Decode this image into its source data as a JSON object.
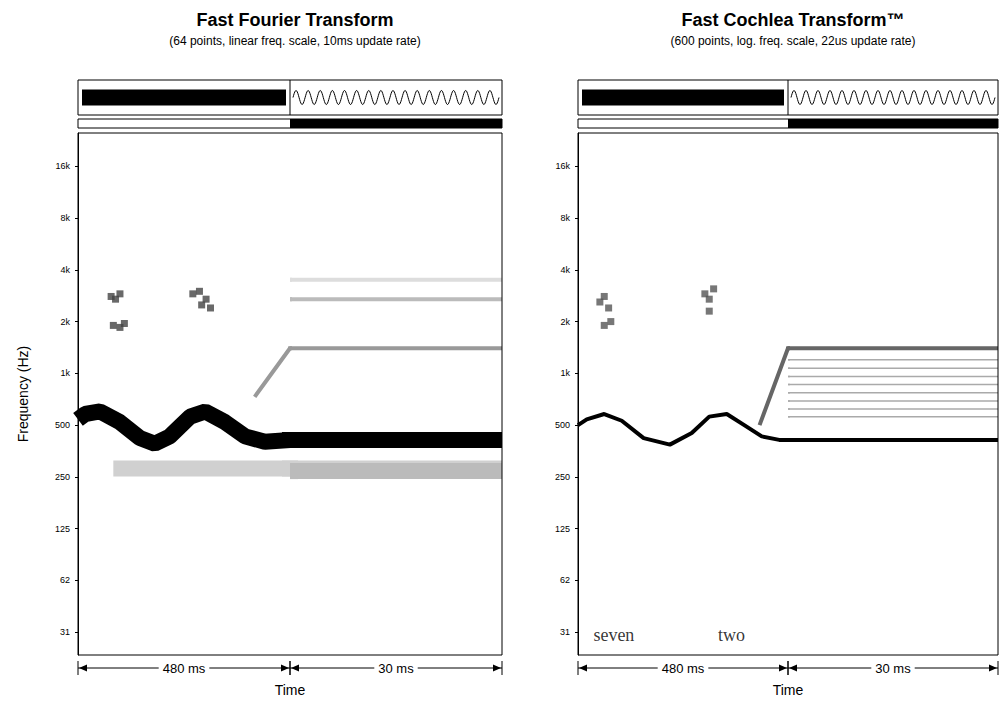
{
  "chart_data": [
    {
      "type": "line",
      "title": "Fast Fourier Transform",
      "subtitle": "(64 points, linear freq. scale, 10ms update rate)",
      "y_label": "Frequency (Hz)",
      "x_label": "Time",
      "log": "y",
      "grid": false,
      "tick_labels": "y",
      "ylim": [
        23,
        25000
      ],
      "yticks": [
        {
          "value": 31.25,
          "label": "31"
        },
        {
          "value": 62.5,
          "label": "62"
        },
        125,
        250,
        500,
        {
          "value": 1000,
          "label": "1k"
        },
        {
          "value": 2000,
          "label": "2k"
        },
        {
          "value": 4000,
          "label": "4k"
        },
        {
          "value": 8000,
          "label": "8k"
        },
        {
          "value": 16000,
          "label": "16k"
        }
      ],
      "segments": [
        {
          "xlim": [
            0,
            480
          ],
          "label": "480 ms"
        },
        {
          "xlim": [
            480,
            510
          ],
          "label": "30 ms"
        }
      ],
      "series": [
        {
          "type": "line",
          "color": "#d0d0d0",
          "line_style": "thick",
          "values": [
            [
              80,
              280
            ],
            [
              510,
              280
            ]
          ]
        },
        {
          "type": "line",
          "color": "#bbbbbb",
          "line_style": "thick",
          "values": [
            [
              480,
              270
            ],
            [
              510,
              270
            ]
          ]
        },
        {
          "type": "line",
          "color": "#999999",
          "line_style": "solid",
          "values": [
            [
              400,
              730
            ],
            [
              480,
              1400
            ],
            [
              510,
              1400
            ]
          ]
        },
        {
          "type": "line",
          "color": "#bbbbbb",
          "line_style": "solid",
          "values": [
            [
              480,
              2700
            ],
            [
              510,
              2700
            ]
          ]
        },
        {
          "type": "line",
          "color": "#dddddd",
          "line_style": "solid",
          "values": [
            [
              480,
              3500
            ],
            [
              510,
              3500
            ]
          ]
        },
        {
          "type": "scatter",
          "color": "#444444",
          "marker": "square",
          "values": [
            [
              75,
              2800
            ],
            [
              85,
              2700
            ],
            [
              95,
              2900
            ],
            [
              80,
              1900
            ],
            [
              95,
              1850
            ],
            [
              105,
              1950
            ],
            [
              260,
              2900
            ],
            [
              275,
              3000
            ],
            [
              290,
              2700
            ],
            [
              300,
              2400
            ],
            [
              280,
              2500
            ]
          ]
        },
        {
          "type": "line",
          "color": "#000000",
          "line_style": "thick",
          "values": [
            [
              0,
              540
            ],
            [
              16,
              580
            ],
            [
              50,
              600
            ],
            [
              95,
              520
            ],
            [
              140,
              420
            ],
            [
              174,
              390
            ],
            [
              208,
              430
            ],
            [
              254,
              560
            ],
            [
              288,
              600
            ],
            [
              333,
              520
            ],
            [
              378,
              430
            ],
            [
              423,
              400
            ],
            [
              480,
              410
            ],
            [
              510,
              410
            ]
          ]
        }
      ]
    },
    {
      "type": "line",
      "title": "Fast Cochlea Transform™",
      "subtitle": "(600 points, log. freq. scale, 22us update rate)",
      "x_label": "Time",
      "log": "y",
      "grid": false,
      "tick_labels": "y",
      "ylim": [
        23,
        25000
      ],
      "yticks": [
        {
          "value": 31.25,
          "label": "31"
        },
        {
          "value": 62.5,
          "label": "62"
        },
        125,
        250,
        500,
        {
          "value": 1000,
          "label": "1k"
        },
        {
          "value": 2000,
          "label": "2k"
        },
        {
          "value": 4000,
          "label": "4k"
        },
        {
          "value": 8000,
          "label": "8k"
        },
        {
          "value": 16000,
          "label": "16k"
        }
      ],
      "segments": [
        {
          "xlim": [
            0,
            480
          ],
          "label": "480 ms"
        },
        {
          "xlim": [
            480,
            510
          ],
          "label": "30 ms"
        }
      ],
      "annotations": [
        {
          "text": "seven",
          "x": 82,
          "y": 30
        },
        {
          "text": "two",
          "x": 351,
          "y": 30
        }
      ],
      "series": [
        {
          "type": "line",
          "color": "#aaaaaa",
          "line_style": "thin",
          "values": [
            [
              480,
              560
            ],
            [
              510,
              560
            ]
          ]
        },
        {
          "type": "line",
          "color": "#aaaaaa",
          "line_style": "thin",
          "values": [
            [
              480,
              620
            ],
            [
              510,
              620
            ]
          ]
        },
        {
          "type": "line",
          "color": "#aaaaaa",
          "line_style": "thin",
          "values": [
            [
              480,
              690
            ],
            [
              510,
              690
            ]
          ]
        },
        {
          "type": "line",
          "color": "#aaaaaa",
          "line_style": "thin",
          "values": [
            [
              480,
              770
            ],
            [
              510,
              770
            ]
          ]
        },
        {
          "type": "line",
          "color": "#aaaaaa",
          "line_style": "thin",
          "values": [
            [
              480,
              860
            ],
            [
              510,
              860
            ]
          ]
        },
        {
          "type": "line",
          "color": "#aaaaaa",
          "line_style": "thin",
          "values": [
            [
              480,
              960
            ],
            [
              510,
              960
            ]
          ]
        },
        {
          "type": "line",
          "color": "#aaaaaa",
          "line_style": "thin",
          "values": [
            [
              480,
              1070
            ],
            [
              510,
              1070
            ]
          ]
        },
        {
          "type": "line",
          "color": "#aaaaaa",
          "line_style": "thin",
          "values": [
            [
              480,
              1200
            ],
            [
              510,
              1200
            ]
          ]
        },
        {
          "type": "line",
          "color": "#666666",
          "line_style": "solid",
          "values": [
            [
              415,
              500
            ],
            [
              480,
              1400
            ],
            [
              510,
              1400
            ]
          ]
        },
        {
          "type": "scatter",
          "color": "#555555",
          "marker": "square",
          "values": [
            [
              50,
              2600
            ],
            [
              60,
              2800
            ],
            [
              70,
              2400
            ],
            [
              60,
              1900
            ],
            [
              75,
              2000
            ],
            [
              290,
              2900
            ],
            [
              300,
              2700
            ],
            [
              310,
              3100
            ],
            [
              300,
              2300
            ]
          ]
        },
        {
          "type": "line",
          "color": "#000000",
          "line_style": "solid",
          "values": [
            [
              0,
              500
            ],
            [
              20,
              540
            ],
            [
              60,
              580
            ],
            [
              100,
              530
            ],
            [
              150,
              420
            ],
            [
              210,
              385
            ],
            [
              260,
              450
            ],
            [
              300,
              560
            ],
            [
              340,
              580
            ],
            [
              380,
              500
            ],
            [
              420,
              430
            ],
            [
              460,
              410
            ],
            [
              480,
              410
            ],
            [
              510,
              410
            ]
          ]
        }
      ]
    }
  ]
}
